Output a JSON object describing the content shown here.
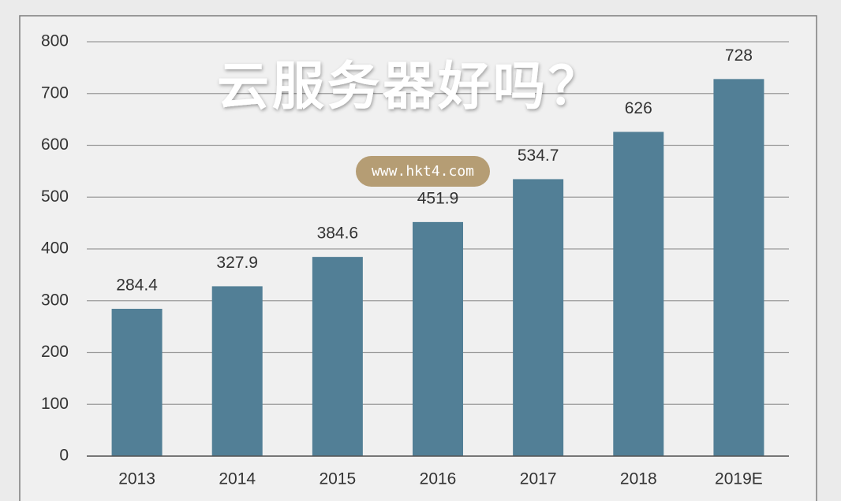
{
  "chart_data": {
    "type": "bar",
    "title": "云服务器好吗？",
    "watermark": "www.hkt4.com",
    "categories": [
      "2013",
      "2014",
      "2015",
      "2016",
      "2017",
      "2018",
      "2019E"
    ],
    "values": [
      284.4,
      327.9,
      384.6,
      451.9,
      534.7,
      626,
      728
    ],
    "color": "#527f96",
    "ylim": [
      0,
      800
    ],
    "yticks": [
      0,
      100,
      200,
      300,
      400,
      500,
      600,
      700,
      800
    ],
    "grid": true
  }
}
